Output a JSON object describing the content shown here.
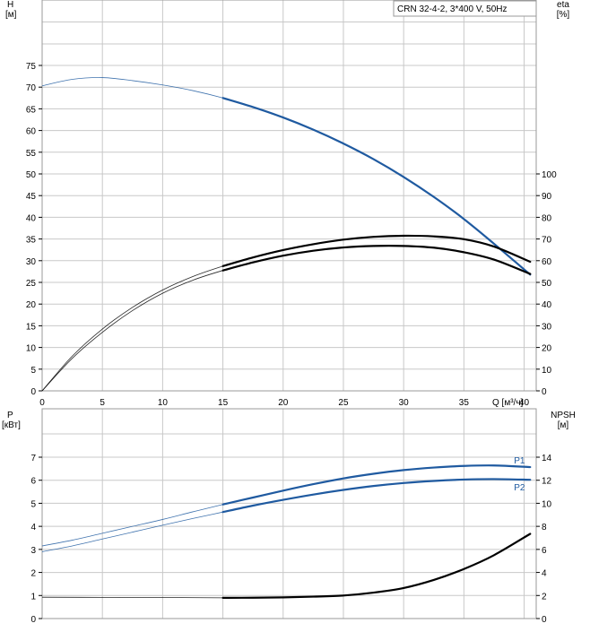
{
  "chart_data": [
    {
      "panel": "top",
      "type": "line",
      "title": "CRN 32-4-2, 3*400 V, 50Hz",
      "xlabel": "Q [м³/ч]",
      "ylabel_left": [
        "H",
        "[м]"
      ],
      "ylabel_right": [
        "eta",
        "[%]"
      ],
      "xlim": [
        0,
        41
      ],
      "ylim_left": [
        0,
        75
      ],
      "ylim_right": [
        0,
        100
      ],
      "x_ticks": [
        0,
        5,
        10,
        15,
        20,
        25,
        30,
        35,
        40
      ],
      "y_left_ticks": [
        0,
        5,
        10,
        15,
        20,
        25,
        30,
        35,
        40,
        45,
        50,
        55,
        60,
        65,
        70,
        75
      ],
      "y_right_ticks": [
        0,
        10,
        20,
        30,
        40,
        50,
        60,
        70,
        80,
        90,
        100
      ],
      "grid": true,
      "series": [
        {
          "axis": "left",
          "color": "#1f5aa0",
          "x": [
            0,
            2.5,
            5,
            7.5,
            10,
            12.5,
            15,
            17.5,
            20,
            22.5,
            25,
            27.5,
            30,
            32.5,
            35,
            37.5,
            40.5
          ],
          "values": [
            70.3,
            71.8,
            72.2,
            71.5,
            70.5,
            69.2,
            67.5,
            65.4,
            63.0,
            60.2,
            57.0,
            53.4,
            49.3,
            44.7,
            39.6,
            33.9,
            26.8
          ],
          "operating_from": 15
        },
        {
          "axis": "right",
          "color": "#000000",
          "x": [
            0,
            2.5,
            5,
            7.5,
            10,
            12.5,
            15,
            17.5,
            20,
            22.5,
            25,
            27.5,
            30,
            32.5,
            35,
            37.5,
            40.5
          ],
          "values": [
            0,
            16,
            28.5,
            38.5,
            46.5,
            52.7,
            57.5,
            61.5,
            64.9,
            67.6,
            69.7,
            71.0,
            71.5,
            71.2,
            69.9,
            66.5,
            59.5
          ],
          "operating_from": 15
        },
        {
          "axis": "right",
          "color": "#000000",
          "x": [
            0,
            2.5,
            5,
            7.5,
            10,
            12.5,
            15,
            17.5,
            20,
            22.5,
            25,
            27.5,
            30,
            32.5,
            35,
            37.5,
            40.5
          ],
          "values": [
            0,
            15,
            27,
            37,
            45,
            51,
            55.5,
            59.2,
            62.3,
            64.6,
            66.1,
            66.8,
            66.8,
            66.0,
            63.9,
            60.5,
            53.9
          ],
          "operating_from": 15
        }
      ]
    },
    {
      "panel": "bottom",
      "type": "line",
      "ylabel_left": [
        "P",
        "[кВт]"
      ],
      "ylabel_right": [
        "NPSH",
        "[м]"
      ],
      "xlim": [
        0,
        41
      ],
      "ylim_left": [
        0,
        7
      ],
      "ylim_right": [
        0,
        14
      ],
      "y_left_ticks": [
        0,
        1,
        2,
        3,
        4,
        5,
        6,
        7
      ],
      "y_right_ticks": [
        0,
        2,
        4,
        6,
        8,
        10,
        12,
        14
      ],
      "grid": true,
      "series": [
        {
          "name": "P1",
          "axis": "left",
          "color": "#1f5aa0",
          "x": [
            0,
            2.5,
            5,
            7.5,
            10,
            12.5,
            15,
            17.5,
            20,
            22.5,
            25,
            27.5,
            30,
            32.5,
            35,
            37.5,
            40.5
          ],
          "values": [
            3.15,
            3.4,
            3.7,
            4.0,
            4.3,
            4.63,
            4.95,
            5.25,
            5.55,
            5.83,
            6.08,
            6.28,
            6.44,
            6.55,
            6.62,
            6.64,
            6.57
          ],
          "operating_from": 15
        },
        {
          "name": "P2",
          "axis": "left",
          "color": "#1f5aa0",
          "x": [
            0,
            2.5,
            5,
            7.5,
            10,
            12.5,
            15,
            17.5,
            20,
            22.5,
            25,
            27.5,
            30,
            32.5,
            35,
            37.5,
            40.5
          ],
          "values": [
            2.9,
            3.15,
            3.45,
            3.75,
            4.05,
            4.34,
            4.62,
            4.9,
            5.15,
            5.38,
            5.58,
            5.75,
            5.88,
            5.97,
            6.03,
            6.05,
            6.02
          ],
          "operating_from": 15
        },
        {
          "axis": "right",
          "color": "#000000",
          "x": [
            0,
            5,
            10,
            15,
            17.5,
            20,
            22.5,
            25,
            27.5,
            30,
            32.5,
            35,
            37.5,
            40.5
          ],
          "values": [
            1.85,
            1.84,
            1.83,
            1.8,
            1.81,
            1.84,
            1.9,
            2.0,
            2.25,
            2.65,
            3.35,
            4.3,
            5.5,
            7.35
          ],
          "operating_from": 15
        }
      ]
    }
  ]
}
